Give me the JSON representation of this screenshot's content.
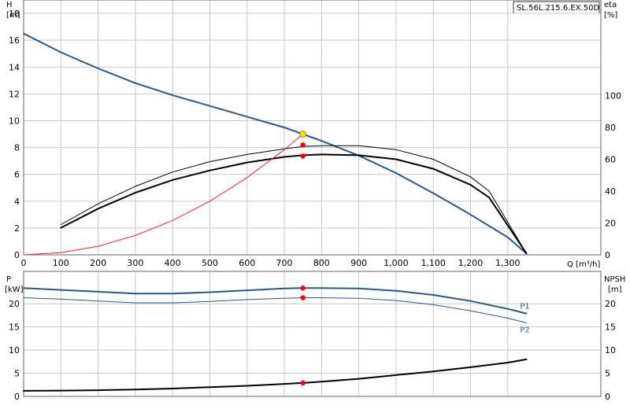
{
  "model_label": "SL.56L.215.6.EX.50D.",
  "colors": {
    "head": "#1f5a96",
    "eta": "#000000",
    "system": "#ff2020",
    "duty_point": "#ffdd00",
    "marker": "#ff0000",
    "p1": "#1f5a96",
    "p2": "#1f5a96",
    "npsh": "#000000",
    "grid": "#c8c8c8"
  },
  "chart_data": [
    {
      "type": "line",
      "panel": "top",
      "xlabel": "Q [m³/h]",
      "ylabel_left_name": "H",
      "ylabel_left_unit": "[m]",
      "ylabel_right_name": "eta",
      "ylabel_right_unit": "[%]",
      "xlim": [
        0,
        1550
      ],
      "ylim_left": [
        0,
        19
      ],
      "ylim_right": [
        0,
        160
      ],
      "x_ticks": [
        0,
        100,
        200,
        300,
        400,
        500,
        600,
        700,
        800,
        900,
        1000,
        1100,
        1200,
        1300
      ],
      "x_tick_labels": [
        "0",
        "100",
        "200",
        "300",
        "400",
        "500",
        "600",
        "700",
        "800",
        "900",
        "1,000",
        "1,100",
        "1,200",
        "1,300"
      ],
      "y_left_ticks": [
        0,
        2,
        4,
        6,
        8,
        10,
        12,
        14,
        16,
        18
      ],
      "y_right_ticks": [
        0,
        20,
        40,
        60,
        80,
        100
      ],
      "grid": true,
      "series": [
        {
          "key": "head",
          "axis": "left",
          "width": 2,
          "x": [
            0,
            100,
            200,
            300,
            400,
            500,
            600,
            700,
            750,
            800,
            900,
            1000,
            1100,
            1200,
            1300,
            1350
          ],
          "values": [
            16.5,
            15.1,
            13.9,
            12.8,
            11.9,
            11.1,
            10.3,
            9.5,
            9.0,
            8.5,
            7.4,
            6.1,
            4.6,
            3.0,
            1.3,
            0.1
          ]
        },
        {
          "key": "eta_outer",
          "axis": "right",
          "width": 1,
          "x": [
            100,
            200,
            300,
            400,
            500,
            600,
            700,
            750,
            800,
            900,
            1000,
            1100,
            1200,
            1250,
            1350
          ],
          "values": [
            19,
            32,
            43,
            52,
            58.5,
            63,
            66.5,
            68,
            68.5,
            68.5,
            66,
            60,
            49,
            40,
            1
          ]
        },
        {
          "key": "eta_inner",
          "axis": "right",
          "width": 2,
          "x": [
            100,
            200,
            300,
            400,
            500,
            600,
            700,
            750,
            800,
            900,
            1000,
            1100,
            1200,
            1250,
            1350
          ],
          "values": [
            17,
            29,
            39,
            47,
            53,
            58,
            61.5,
            62.5,
            63,
            62.5,
            60,
            54,
            44,
            36,
            1
          ]
        },
        {
          "key": "system",
          "axis": "left",
          "width": 1,
          "x": [
            0,
            100,
            200,
            300,
            400,
            500,
            600,
            700,
            750
          ],
          "values": [
            0,
            0.16,
            0.64,
            1.44,
            2.56,
            4.0,
            5.76,
            7.84,
            9.0
          ]
        }
      ],
      "points": [
        {
          "axis": "left",
          "x": 750,
          "y": 9.0,
          "key": "duty_point"
        },
        {
          "axis": "right",
          "x": 750,
          "y": 69,
          "key": "marker"
        },
        {
          "axis": "right",
          "x": 750,
          "y": 62,
          "key": "marker"
        }
      ]
    },
    {
      "type": "line",
      "panel": "bottom",
      "ylabel_left_name": "P",
      "ylabel_left_unit": "[kW]",
      "ylabel_right_name": "NPSH",
      "ylabel_right_unit": "[m]",
      "xlim": [
        0,
        1550
      ],
      "ylim_left": [
        0,
        27
      ],
      "ylim_right": [
        0,
        27
      ],
      "y_left_ticks": [
        0,
        5,
        10,
        15,
        20
      ],
      "y_right_ticks": [
        0,
        5,
        10,
        15,
        20
      ],
      "grid": true,
      "series": [
        {
          "name": "P1",
          "key": "p1",
          "axis": "left",
          "width": 2,
          "x": [
            0,
            100,
            200,
            300,
            400,
            500,
            600,
            700,
            750,
            800,
            900,
            1000,
            1100,
            1200,
            1300,
            1350
          ],
          "values": [
            23.4,
            23.0,
            22.6,
            22.2,
            22.2,
            22.5,
            22.9,
            23.3,
            23.4,
            23.4,
            23.3,
            22.8,
            21.9,
            20.6,
            18.9,
            17.9
          ]
        },
        {
          "name": "P2",
          "key": "p2",
          "axis": "left",
          "width": 1,
          "x": [
            0,
            100,
            200,
            300,
            400,
            500,
            600,
            700,
            750,
            800,
            900,
            1000,
            1100,
            1200,
            1300,
            1350
          ],
          "values": [
            21.3,
            21.0,
            20.6,
            20.2,
            20.2,
            20.5,
            20.9,
            21.2,
            21.3,
            21.3,
            21.2,
            20.7,
            19.8,
            18.5,
            16.9,
            15.9
          ]
        },
        {
          "key": "npsh",
          "axis": "right",
          "width": 2,
          "x": [
            0,
            100,
            200,
            300,
            400,
            500,
            600,
            700,
            750,
            800,
            900,
            1000,
            1100,
            1200,
            1300,
            1350
          ],
          "values": [
            1.2,
            1.25,
            1.35,
            1.5,
            1.7,
            2.0,
            2.3,
            2.7,
            2.9,
            3.2,
            3.8,
            4.6,
            5.4,
            6.3,
            7.3,
            8.0
          ]
        }
      ],
      "points": [
        {
          "axis": "left",
          "x": 750,
          "y": 23.4,
          "key": "marker"
        },
        {
          "axis": "left",
          "x": 750,
          "y": 21.3,
          "key": "marker"
        },
        {
          "axis": "right",
          "x": 750,
          "y": 2.9,
          "key": "marker"
        }
      ]
    }
  ]
}
